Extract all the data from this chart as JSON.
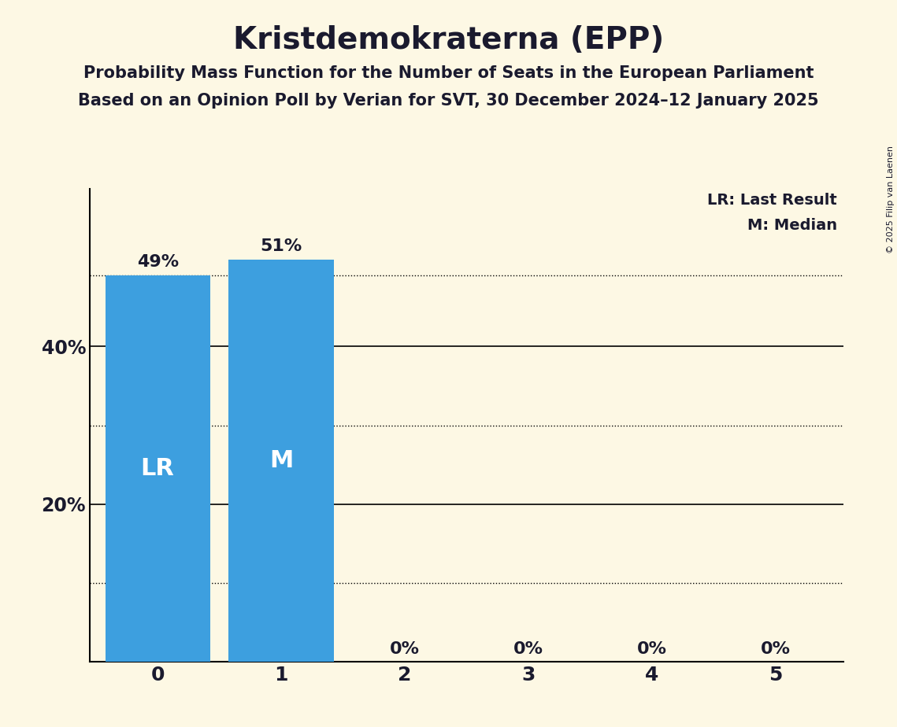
{
  "title": "Kristdemokraterna (EPP)",
  "subtitle1": "Probability Mass Function for the Number of Seats in the European Parliament",
  "subtitle2": "Based on an Opinion Poll by Verian for SVT, 30 December 2024–12 January 2025",
  "copyright": "© 2025 Filip van Laenen",
  "categories": [
    0,
    1,
    2,
    3,
    4,
    5
  ],
  "values": [
    0.49,
    0.51,
    0.0,
    0.0,
    0.0,
    0.0
  ],
  "bar_color": "#3d9fdf",
  "background_color": "#fdf8e4",
  "lr_seat": 0,
  "lr_value": 0.49,
  "median_seat": 1,
  "median_value": 0.51,
  "yticks": [
    0.0,
    0.2,
    0.4
  ],
  "ytick_labels": [
    "",
    "20%",
    "40%"
  ],
  "ylim": [
    0,
    0.6
  ],
  "legend_lr": "LR: Last Result",
  "legend_m": "M: Median",
  "solid_gridlines": [
    0.2,
    0.4
  ],
  "dotted_gridlines": [
    0.49,
    0.3,
    0.1
  ],
  "bar_label_color": "#ffffff",
  "bar_label_fontsize": 22,
  "title_fontsize": 28,
  "subtitle_fontsize": 15,
  "tick_label_fontsize": 18,
  "ytick_fontsize": 17,
  "pct_label_fontsize": 16,
  "legend_fontsize": 14,
  "text_color": "#1a1a2e"
}
